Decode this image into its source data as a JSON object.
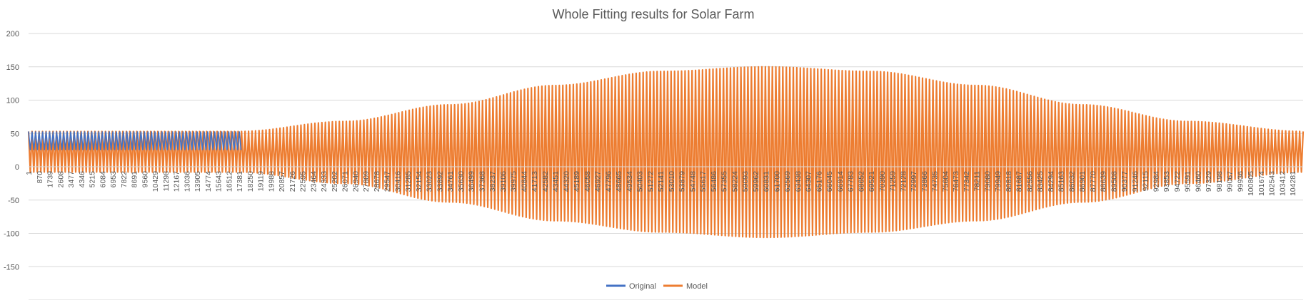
{
  "chart_data": {
    "type": "line",
    "title": "Whole Fitting results for Solar Farm",
    "xlabel": "",
    "ylabel": "",
    "ylim": [
      -200,
      200
    ],
    "yticks": [
      200,
      150,
      100,
      50,
      0,
      -50,
      -100,
      -150,
      -200
    ],
    "grid": true,
    "legend_position": "bottom",
    "x_range": [
      1,
      105120
    ],
    "x_tick_labels": [
      "1",
      "870",
      "1739",
      "2608",
      "3477",
      "4346",
      "5215",
      "6084",
      "6953",
      "7822",
      "8691",
      "9560",
      "10429",
      "11298",
      "12167",
      "13036",
      "13905",
      "14774",
      "15643",
      "16512",
      "17381",
      "18250",
      "19119",
      "19988",
      "20857",
      "21726",
      "22595",
      "23464",
      "24333",
      "25202",
      "26071",
      "26940",
      "27809",
      "28678",
      "29547",
      "30416",
      "31285",
      "32154",
      "33023",
      "33892",
      "34761",
      "35630",
      "36499",
      "37368",
      "38237",
      "39106",
      "39975",
      "40844",
      "41713",
      "42582",
      "43451",
      "44320",
      "45189",
      "46058",
      "46927",
      "47796",
      "48665",
      "49534",
      "50403",
      "51272",
      "52141",
      "53010",
      "53879",
      "54748",
      "55617",
      "56486",
      "57355",
      "58224",
      "59093",
      "59962",
      "60831",
      "61700",
      "62569",
      "63438",
      "64307",
      "65176",
      "66045",
      "66914",
      "67783",
      "68652",
      "69521",
      "70390",
      "71259",
      "72128",
      "72997",
      "73866",
      "74735",
      "75604",
      "76473",
      "77342",
      "78211",
      "79080",
      "79949",
      "80818",
      "81687",
      "82556",
      "83425",
      "84294",
      "85163",
      "86032",
      "86901",
      "87770",
      "88639",
      "89508",
      "90377",
      "91246",
      "92115",
      "92984",
      "93853",
      "94722",
      "95591",
      "96460",
      "97329",
      "98198",
      "99067",
      "99936",
      "100805",
      "101674",
      "102543",
      "103412",
      "104281"
    ],
    "series": [
      {
        "name": "Original",
        "color": "#4472C4",
        "description_values": {
          "daily_max": 53,
          "daily_min": 0,
          "visible_until_x": 17381,
          "gap_near_x": 8700
        }
      },
      {
        "name": "Model",
        "color": "#ED7D31",
        "envelope": {
          "x": [
            1,
            17381,
            26071,
            34761,
            43451,
            52141,
            60831,
            69521,
            78211,
            86901,
            95591,
            105120
          ],
          "upper": [
            53,
            53,
            68,
            93,
            122,
            143,
            150,
            143,
            122,
            93,
            68,
            53
          ],
          "lower": [
            -8,
            -8,
            -25,
            -53,
            -81,
            -98,
            -106,
            -98,
            -81,
            -53,
            -25,
            -8
          ]
        }
      }
    ]
  }
}
